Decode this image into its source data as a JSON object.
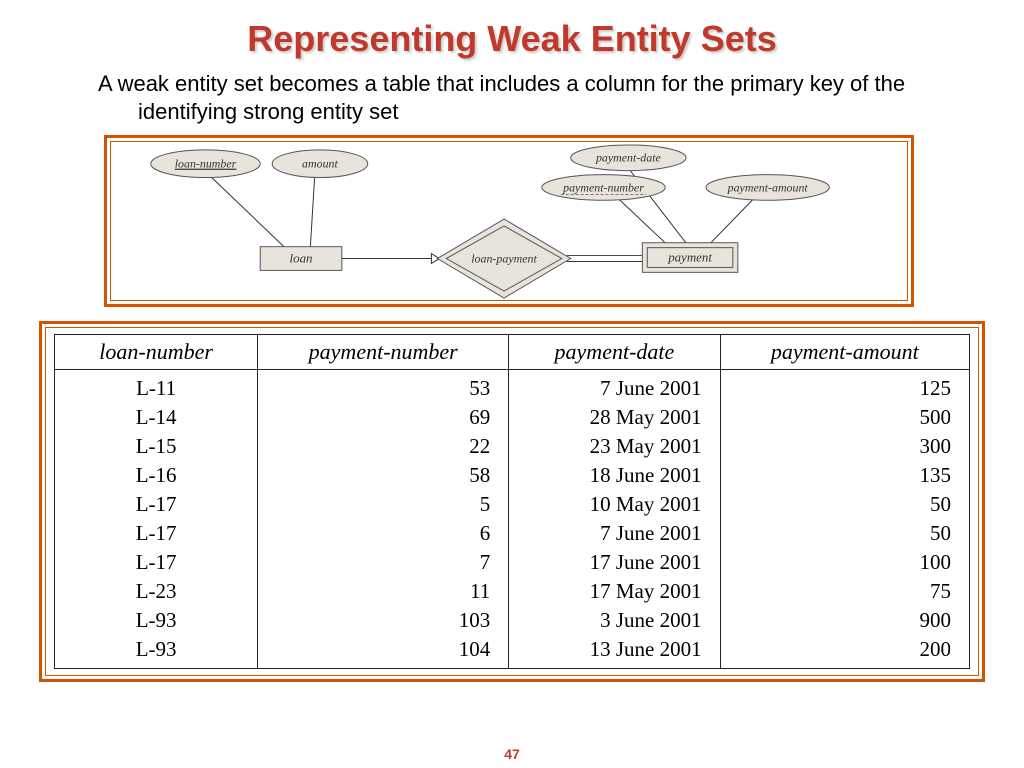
{
  "title": "Representing Weak Entity Sets",
  "title_color": "#c0392b",
  "body_text": "A weak entity set becomes a table that includes a column for the primary key of the identifying strong entity set",
  "page_number": "47",
  "er_diagram": {
    "type": "er-diagram",
    "frame_color": "#d35400",
    "shape_fill": "#e8e4dc",
    "shape_stroke": "#555555",
    "line_color": "#333333",
    "attributes": {
      "loan_number": {
        "label": "loan-number",
        "underline": true,
        "dashed_underline": false
      },
      "amount": {
        "label": "amount",
        "underline": false,
        "dashed_underline": false
      },
      "payment_date": {
        "label": "payment-date",
        "underline": false,
        "dashed_underline": false
      },
      "payment_number": {
        "label": "payment-number",
        "underline": false,
        "dashed_underline": true
      },
      "payment_amount": {
        "label": "payment-amount",
        "underline": false,
        "dashed_underline": false
      }
    },
    "entities": {
      "loan": {
        "label": "loan",
        "weak": false
      },
      "payment": {
        "label": "payment",
        "weak": true
      }
    },
    "relationship": {
      "label": "loan-payment"
    }
  },
  "table": {
    "type": "table",
    "frame_color": "#d35400",
    "border_color": "#222222",
    "header_font_style": "italic",
    "header_fontsize": 22,
    "cell_fontsize": 21,
    "columns": [
      "loan-number",
      "payment-number",
      "payment-date",
      "payment-amount"
    ],
    "rows": [
      [
        "L-11",
        "53",
        "7 June 2001",
        "125"
      ],
      [
        "L-14",
        "69",
        "28 May 2001",
        "500"
      ],
      [
        "L-15",
        "22",
        "23 May 2001",
        "300"
      ],
      [
        "L-16",
        "58",
        "18 June 2001",
        "135"
      ],
      [
        "L-17",
        "5",
        "10 May 2001",
        "50"
      ],
      [
        "L-17",
        "6",
        "7 June 2001",
        "50"
      ],
      [
        "L-17",
        "7",
        "17 June 2001",
        "100"
      ],
      [
        "L-23",
        "11",
        "17 May 2001",
        "75"
      ],
      [
        "L-93",
        "103",
        "3 June 2001",
        "900"
      ],
      [
        "L-93",
        "104",
        "13 June 2001",
        "200"
      ]
    ],
    "col_align": [
      "center",
      "right",
      "right",
      "right"
    ]
  }
}
